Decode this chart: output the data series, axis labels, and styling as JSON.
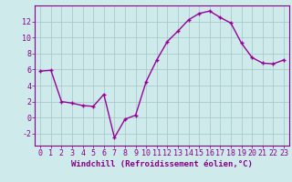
{
  "x": [
    0,
    1,
    2,
    3,
    4,
    5,
    6,
    7,
    8,
    9,
    10,
    11,
    12,
    13,
    14,
    15,
    16,
    17,
    18,
    19,
    20,
    21,
    22,
    23
  ],
  "y": [
    5.8,
    5.9,
    2.0,
    1.8,
    1.5,
    1.4,
    2.9,
    -2.5,
    -0.2,
    0.3,
    4.5,
    7.2,
    9.5,
    10.8,
    12.2,
    13.0,
    13.3,
    12.5,
    11.8,
    9.3,
    7.5,
    6.8,
    6.7,
    7.2
  ],
  "line_color": "#990099",
  "marker": "+",
  "markersize": 3.5,
  "linewidth": 1.0,
  "xlabel": "Windchill (Refroidissement éolien,°C)",
  "xlabel_fontsize": 6.5,
  "ylabel_ticks": [
    -2,
    0,
    2,
    4,
    6,
    8,
    10,
    12
  ],
  "xtick_labels": [
    "0",
    "1",
    "2",
    "3",
    "4",
    "5",
    "6",
    "7",
    "8",
    "9",
    "10",
    "11",
    "12",
    "13",
    "14",
    "15",
    "16",
    "17",
    "18",
    "19",
    "20",
    "21",
    "22",
    "23"
  ],
  "ylim": [
    -3.5,
    14.0
  ],
  "xlim": [
    -0.5,
    23.5
  ],
  "bg_color": "#ceeaea",
  "grid_color": "#aacccc",
  "tick_fontsize": 6.0,
  "tick_color": "#880088",
  "label_color": "#880088",
  "spine_color": "#880088"
}
